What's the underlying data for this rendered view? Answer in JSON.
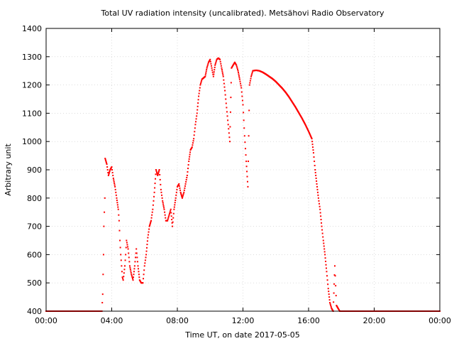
{
  "chart_data": {
    "type": "scatter",
    "title": "Total UV radiation intensity (uncalibrated). Metsähovi Radio Observatory",
    "xlabel": "Time UT, on date 2017-05-05",
    "ylabel": "Arbitrary unit",
    "xlim": [
      0,
      24
    ],
    "ylim": [
      400,
      1400
    ],
    "x_ticks": [
      0,
      4,
      8,
      12,
      16,
      20,
      24
    ],
    "x_tick_labels": [
      "00:00",
      "04:00",
      "08:00",
      "12:00",
      "16:00",
      "20:00",
      "00:00"
    ],
    "y_ticks": [
      400,
      500,
      600,
      700,
      800,
      900,
      1000,
      1100,
      1200,
      1300,
      1400
    ],
    "y_tick_labels": [
      "400",
      "500",
      "600",
      "700",
      "800",
      "900",
      "1000",
      "1100",
      "1200",
      "1300",
      "1400"
    ],
    "grid": true,
    "legend": "none",
    "marker_color": "#ff0000",
    "series": [
      {
        "values": [
          [
            0.0,
            400
          ],
          [
            3.4,
            400
          ],
          [
            3.45,
            460
          ],
          [
            3.5,
            600
          ],
          [
            3.52,
            700
          ],
          [
            3.55,
            750
          ],
          [
            3.58,
            800
          ],
          [
            3.6,
            940
          ],
          [
            3.7,
            920
          ],
          [
            3.8,
            880
          ],
          [
            3.9,
            900
          ],
          [
            4.0,
            910
          ],
          [
            4.1,
            870
          ],
          [
            4.2,
            840
          ],
          [
            4.3,
            800
          ],
          [
            4.4,
            760
          ],
          [
            4.45,
            720
          ],
          [
            4.5,
            650
          ],
          [
            4.55,
            600
          ],
          [
            4.6,
            560
          ],
          [
            4.65,
            520
          ],
          [
            4.7,
            510
          ],
          [
            4.8,
            560
          ],
          [
            4.85,
            600
          ],
          [
            4.9,
            650
          ],
          [
            5.0,
            620
          ],
          [
            5.1,
            560
          ],
          [
            5.2,
            530
          ],
          [
            5.3,
            510
          ],
          [
            5.4,
            560
          ],
          [
            5.5,
            620
          ],
          [
            5.6,
            560
          ],
          [
            5.7,
            510
          ],
          [
            5.8,
            500
          ],
          [
            5.9,
            500
          ],
          [
            6.0,
            560
          ],
          [
            6.1,
            600
          ],
          [
            6.2,
            660
          ],
          [
            6.3,
            700
          ],
          [
            6.4,
            720
          ],
          [
            6.5,
            760
          ],
          [
            6.6,
            820
          ],
          [
            6.7,
            900
          ],
          [
            6.8,
            880
          ],
          [
            6.9,
            900
          ],
          [
            7.0,
            830
          ],
          [
            7.1,
            790
          ],
          [
            7.2,
            760
          ],
          [
            7.3,
            720
          ],
          [
            7.4,
            720
          ],
          [
            7.5,
            740
          ],
          [
            7.6,
            760
          ],
          [
            7.7,
            700
          ],
          [
            7.8,
            760
          ],
          [
            7.9,
            800
          ],
          [
            8.0,
            840
          ],
          [
            8.1,
            850
          ],
          [
            8.2,
            820
          ],
          [
            8.3,
            800
          ],
          [
            8.4,
            820
          ],
          [
            8.5,
            850
          ],
          [
            8.6,
            880
          ],
          [
            8.7,
            930
          ],
          [
            8.8,
            970
          ],
          [
            8.9,
            980
          ],
          [
            9.0,
            1010
          ],
          [
            9.1,
            1060
          ],
          [
            9.2,
            1100
          ],
          [
            9.3,
            1160
          ],
          [
            9.4,
            1200
          ],
          [
            9.5,
            1220
          ],
          [
            9.6,
            1225
          ],
          [
            9.7,
            1230
          ],
          [
            9.8,
            1260
          ],
          [
            9.9,
            1280
          ],
          [
            10.0,
            1290
          ],
          [
            10.1,
            1260
          ],
          [
            10.2,
            1230
          ],
          [
            10.3,
            1270
          ],
          [
            10.4,
            1290
          ],
          [
            10.5,
            1295
          ],
          [
            10.6,
            1290
          ],
          [
            10.7,
            1260
          ],
          [
            10.8,
            1230
          ],
          [
            10.9,
            1180
          ],
          [
            11.0,
            1120
          ],
          [
            11.1,
            1060
          ],
          [
            11.2,
            1000
          ],
          [
            11.3,
            1260
          ],
          [
            11.4,
            1270
          ],
          [
            11.5,
            1280
          ],
          [
            11.6,
            1270
          ],
          [
            11.7,
            1250
          ],
          [
            11.8,
            1220
          ],
          [
            11.9,
            1190
          ],
          [
            12.0,
            1130
          ],
          [
            12.1,
            1020
          ],
          [
            12.2,
            930
          ],
          [
            12.3,
            840
          ],
          [
            12.4,
            1200
          ],
          [
            12.5,
            1230
          ],
          [
            12.6,
            1250
          ],
          [
            12.8,
            1252
          ],
          [
            13.0,
            1250
          ],
          [
            13.2,
            1245
          ],
          [
            13.4,
            1238
          ],
          [
            13.6,
            1230
          ],
          [
            13.8,
            1222
          ],
          [
            14.0,
            1212
          ],
          [
            14.2,
            1200
          ],
          [
            14.4,
            1188
          ],
          [
            14.6,
            1174
          ],
          [
            14.8,
            1158
          ],
          [
            15.0,
            1140
          ],
          [
            15.2,
            1122
          ],
          [
            15.4,
            1102
          ],
          [
            15.6,
            1082
          ],
          [
            15.8,
            1060
          ],
          [
            16.0,
            1036
          ],
          [
            16.2,
            1010
          ],
          [
            16.3,
            960
          ],
          [
            16.4,
            900
          ],
          [
            16.5,
            850
          ],
          [
            16.6,
            800
          ],
          [
            16.7,
            760
          ],
          [
            16.8,
            700
          ],
          [
            16.9,
            650
          ],
          [
            17.0,
            600
          ],
          [
            17.1,
            540
          ],
          [
            17.2,
            480
          ],
          [
            17.3,
            430
          ],
          [
            17.4,
            410
          ],
          [
            17.5,
            400
          ],
          [
            17.6,
            560
          ],
          [
            17.7,
            420
          ],
          [
            17.8,
            410
          ],
          [
            17.9,
            400
          ],
          [
            24.0,
            400
          ]
        ]
      }
    ]
  }
}
